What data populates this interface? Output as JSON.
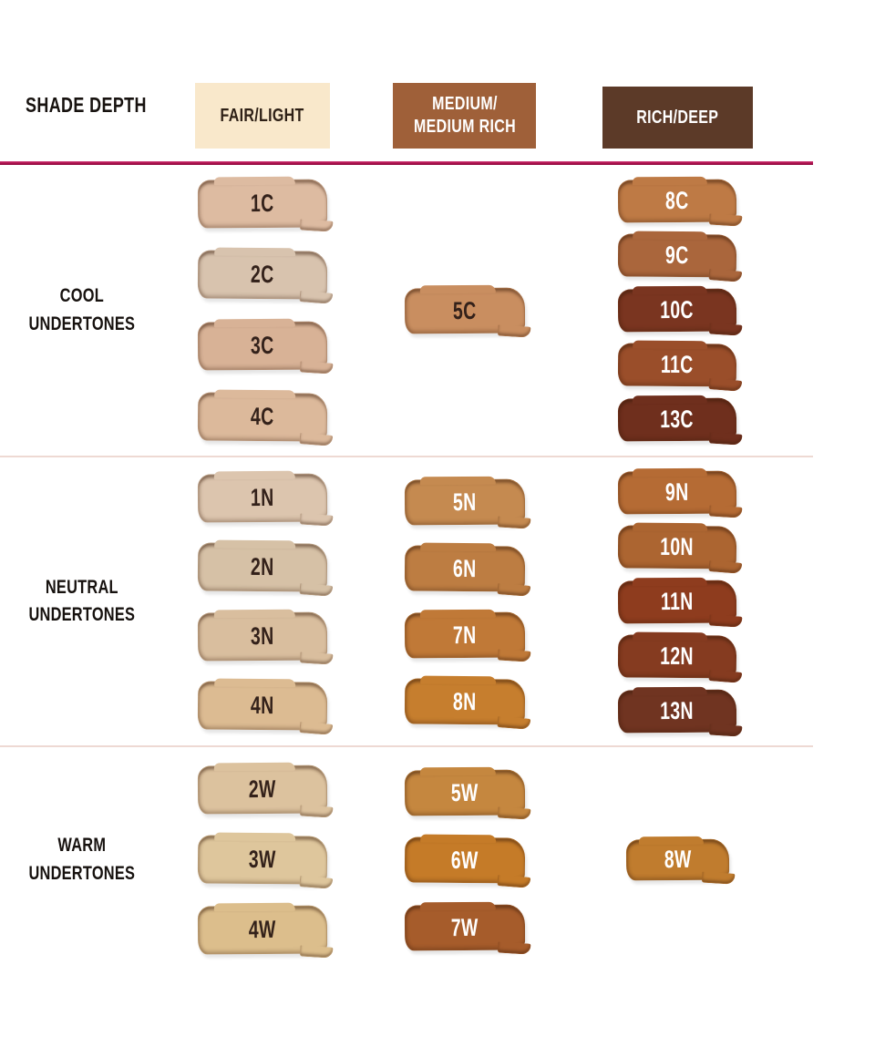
{
  "header": {
    "row_label": "SHADE DEPTH",
    "columns": [
      {
        "label": "FAIR/LIGHT",
        "bg": "#F9E8CB",
        "text_color": "#2e2016"
      },
      {
        "label": "MEDIUM/\nMEDIUM RICH",
        "bg": "#9F6039",
        "text_color": "#ffffff"
      },
      {
        "label": "RICH/DEEP",
        "bg": "#5C3A28",
        "text_color": "#ffffff"
      }
    ],
    "divider_color": "#B0124F"
  },
  "sections": [
    {
      "label": "COOL\nUNDERTONES",
      "cells": [
        {
          "column": "fair_light",
          "swatches": [
            {
              "code": "1C",
              "color": "#DDBBA1",
              "text_color": "#33211a"
            },
            {
              "code": "2C",
              "color": "#D8C3AE",
              "text_color": "#33211a"
            },
            {
              "code": "3C",
              "color": "#D8B296",
              "text_color": "#33211a"
            },
            {
              "code": "4C",
              "color": "#DCB99B",
              "text_color": "#33211a"
            }
          ]
        },
        {
          "column": "medium_medium_rich",
          "swatches": [
            {
              "code": "5C",
              "color": "#C98E60",
              "text_color": "#33211a"
            }
          ]
        },
        {
          "column": "rich_deep",
          "swatches": [
            {
              "code": "8C",
              "color": "#BE7A45",
              "text_color": "#ffffff"
            },
            {
              "code": "9C",
              "color": "#AA663C",
              "text_color": "#ffffff"
            },
            {
              "code": "10C",
              "color": "#7A3520",
              "text_color": "#ffffff"
            },
            {
              "code": "11C",
              "color": "#9A4E2A",
              "text_color": "#ffffff"
            },
            {
              "code": "13C",
              "color": "#6F2F1D",
              "text_color": "#ffffff"
            }
          ]
        }
      ]
    },
    {
      "label": "NEUTRAL\nUNDERTONES",
      "cells": [
        {
          "column": "fair_light",
          "swatches": [
            {
              "code": "1N",
              "color": "#DCC5AE",
              "text_color": "#33211a"
            },
            {
              "code": "2N",
              "color": "#D6C1A6",
              "text_color": "#33211a"
            },
            {
              "code": "3N",
              "color": "#D9BE9E",
              "text_color": "#33211a"
            },
            {
              "code": "4N",
              "color": "#DCBB92",
              "text_color": "#33211a"
            }
          ]
        },
        {
          "column": "medium_medium_rich",
          "swatches": [
            {
              "code": "5N",
              "color": "#C58A50",
              "text_color": "#ffffff"
            },
            {
              "code": "6N",
              "color": "#BD7D42",
              "text_color": "#ffffff"
            },
            {
              "code": "7N",
              "color": "#C07937",
              "text_color": "#ffffff"
            },
            {
              "code": "8N",
              "color": "#C67E2E",
              "text_color": "#ffffff"
            }
          ]
        },
        {
          "column": "rich_deep",
          "swatches": [
            {
              "code": "9N",
              "color": "#B56B34",
              "text_color": "#ffffff"
            },
            {
              "code": "10N",
              "color": "#AC6531",
              "text_color": "#ffffff"
            },
            {
              "code": "11N",
              "color": "#8E3C1E",
              "text_color": "#ffffff"
            },
            {
              "code": "12N",
              "color": "#853B20",
              "text_color": "#ffffff"
            },
            {
              "code": "13N",
              "color": "#703421",
              "text_color": "#ffffff"
            }
          ]
        }
      ]
    },
    {
      "label": "WARM\nUNDERTONES",
      "cells": [
        {
          "column": "fair_light",
          "swatches": [
            {
              "code": "2W",
              "color": "#DCC29E",
              "text_color": "#33211a"
            },
            {
              "code": "3W",
              "color": "#DEC69C",
              "text_color": "#33211a"
            },
            {
              "code": "4W",
              "color": "#DCBE8C",
              "text_color": "#33211a"
            }
          ]
        },
        {
          "column": "medium_medium_rich",
          "swatches": [
            {
              "code": "5W",
              "color": "#C5873F",
              "text_color": "#ffffff"
            },
            {
              "code": "6W",
              "color": "#C57B28",
              "text_color": "#ffffff"
            },
            {
              "code": "7W",
              "color": "#A65C2B",
              "text_color": "#ffffff"
            }
          ]
        },
        {
          "column": "rich_deep",
          "swatches": [
            {
              "code": "8W",
              "color": "#C07C2E",
              "text_color": "#ffffff",
              "small": true
            }
          ]
        }
      ]
    }
  ],
  "chart_data": {
    "type": "table",
    "title": "Foundation shade depth / undertone chart",
    "columns": [
      "SHADE DEPTH",
      "FAIR/LIGHT",
      "MEDIUM/MEDIUM RICH",
      "RICH/DEEP"
    ],
    "rows": [
      {
        "row_label": "COOL UNDERTONES",
        "fair_light": [
          "1C",
          "2C",
          "3C",
          "4C"
        ],
        "medium_medium_rich": [
          "5C"
        ],
        "rich_deep": [
          "8C",
          "9C",
          "10C",
          "11C",
          "13C"
        ]
      },
      {
        "row_label": "NEUTRAL UNDERTONES",
        "fair_light": [
          "1N",
          "2N",
          "3N",
          "4N"
        ],
        "medium_medium_rich": [
          "5N",
          "6N",
          "7N",
          "8N"
        ],
        "rich_deep": [
          "9N",
          "10N",
          "11N",
          "12N",
          "13N"
        ]
      },
      {
        "row_label": "WARM UNDERTONES",
        "fair_light": [
          "2W",
          "3W",
          "4W"
        ],
        "medium_medium_rich": [
          "5W",
          "6W",
          "7W"
        ],
        "rich_deep": [
          "8W"
        ]
      }
    ],
    "layout": {
      "grid": false,
      "header_divider_color": "#B0124F",
      "section_divider_color": "#EED9D3"
    }
  }
}
